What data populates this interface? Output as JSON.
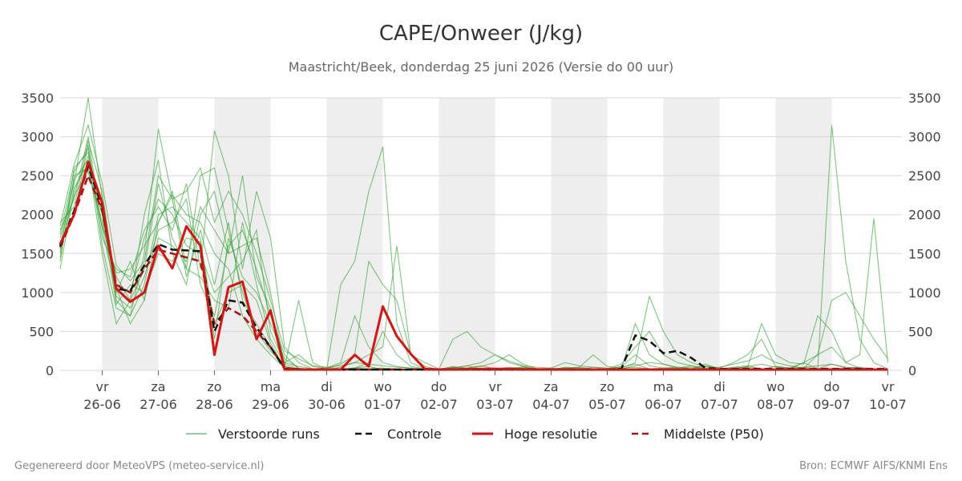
{
  "chart_data": {
    "type": "line",
    "title": "CAPE/Onweer (J/kg)",
    "subtitle": "Maastricht/Beek, donderdag 25 juni 2026 (Versie do 00 uur)",
    "ylim": [
      0,
      3500
    ],
    "yticks": [
      0,
      500,
      1000,
      1500,
      2000,
      2500,
      3000,
      3500
    ],
    "xlim": [
      -0.75,
      14.25
    ],
    "grid": true,
    "legend_position": "bottom",
    "day_ticks": [
      {
        "weekday": "vr",
        "date": "26-06"
      },
      {
        "weekday": "za",
        "date": "27-06"
      },
      {
        "weekday": "zo",
        "date": "28-06"
      },
      {
        "weekday": "ma",
        "date": "29-06"
      },
      {
        "weekday": "di",
        "date": "30-06"
      },
      {
        "weekday": "wo",
        "date": "01-07"
      },
      {
        "weekday": "do",
        "date": "02-07"
      },
      {
        "weekday": "vr",
        "date": "03-07"
      },
      {
        "weekday": "za",
        "date": "04-07"
      },
      {
        "weekday": "zo",
        "date": "05-07"
      },
      {
        "weekday": "ma",
        "date": "06-07"
      },
      {
        "weekday": "di",
        "date": "07-07"
      },
      {
        "weekday": "wo",
        "date": "08-07"
      },
      {
        "weekday": "do",
        "date": "09-07"
      },
      {
        "weekday": "vr",
        "date": "10-07"
      }
    ],
    "shaded_days": [
      0,
      2,
      4,
      6,
      8,
      10,
      12
    ],
    "series": [
      {
        "name": "Controle",
        "style": "dashed",
        "color": "#111111",
        "x": [
          -0.75,
          -0.5,
          -0.25,
          0,
          0.25,
          0.5,
          0.75,
          1,
          1.25,
          1.5,
          1.75,
          2,
          2.25,
          2.5,
          2.75,
          3,
          3.25,
          3.5,
          3.75,
          4,
          4.25,
          4.5,
          4.75,
          5,
          5.5,
          6,
          7,
          8,
          9,
          9.25,
          9.5,
          9.75,
          10,
          10.25,
          10.5,
          10.75,
          11,
          11.5,
          12,
          13,
          14
        ],
        "y": [
          1600,
          2050,
          2620,
          2100,
          1050,
          1020,
          1350,
          1620,
          1550,
          1540,
          1530,
          500,
          900,
          870,
          550,
          300,
          20,
          15,
          10,
          10,
          10,
          10,
          10,
          10,
          10,
          10,
          10,
          10,
          10,
          20,
          450,
          380,
          220,
          250,
          160,
          30,
          20,
          20,
          20,
          20,
          20
        ]
      },
      {
        "name": "Hoge resolutie",
        "style": "solid",
        "color": "#dd1111",
        "x": [
          -0.75,
          -0.5,
          -0.25,
          0,
          0.25,
          0.5,
          0.75,
          1,
          1.25,
          1.5,
          1.75,
          2,
          2.25,
          2.5,
          2.75,
          3,
          3.25,
          3.5,
          3.75,
          4,
          4.25,
          4.5,
          4.75,
          5,
          5.25,
          5.5,
          5.75,
          6,
          7,
          8,
          9,
          10,
          11,
          12,
          13,
          14
        ],
        "y": [
          1620,
          2000,
          2680,
          2150,
          1050,
          880,
          1000,
          1600,
          1310,
          1850,
          1600,
          200,
          1070,
          1140,
          400,
          770,
          10,
          10,
          10,
          10,
          10,
          200,
          50,
          820,
          440,
          210,
          20,
          10,
          20,
          10,
          10,
          10,
          10,
          10,
          10,
          10
        ]
      },
      {
        "name": "Middelste (P50)",
        "style": "dashed",
        "color": "#aa1111",
        "x": [
          -0.75,
          -0.5,
          -0.25,
          0,
          0.25,
          0.5,
          0.75,
          1,
          1.25,
          1.5,
          1.75,
          2,
          2.25,
          2.5,
          2.75,
          3,
          3.25,
          3.5,
          4,
          5,
          6,
          7,
          8,
          9,
          10,
          11,
          12,
          13,
          14
        ],
        "y": [
          1580,
          2000,
          2500,
          2050,
          1100,
          1000,
          1300,
          1550,
          1500,
          1450,
          1400,
          600,
          800,
          700,
          500,
          300,
          30,
          10,
          10,
          10,
          10,
          10,
          10,
          10,
          10,
          10,
          10,
          10,
          10
        ]
      }
    ],
    "ensemble": {
      "name": "Verstoorde runs",
      "color": "#2aa02a",
      "x": [
        -0.75,
        -0.5,
        -0.25,
        0,
        0.25,
        0.5,
        0.75,
        1,
        1.25,
        1.5,
        1.75,
        2,
        2.25,
        2.5,
        2.75,
        3,
        3.25,
        3.5,
        3.75,
        4,
        4.25,
        4.5,
        4.75,
        5,
        5.25,
        5.5,
        5.75,
        6,
        6.25,
        6.5,
        6.75,
        7,
        7.25,
        7.5,
        7.75,
        8,
        8.25,
        8.5,
        8.75,
        9,
        9.25,
        9.5,
        9.75,
        10,
        10.25,
        10.5,
        10.75,
        11,
        11.25,
        11.5,
        11.75,
        12,
        12.25,
        12.5,
        12.75,
        13,
        13.25,
        13.5,
        13.75,
        14
      ],
      "members": [
        [
          1700,
          2400,
          3500,
          2200,
          900,
          700,
          1500,
          3100,
          2200,
          1200,
          1800,
          1100,
          1900,
          900,
          600,
          300,
          50,
          20,
          10,
          40,
          20,
          30,
          15,
          20,
          10,
          10,
          10,
          10,
          50,
          20,
          10,
          10,
          30,
          20,
          10,
          10,
          30,
          20,
          10,
          10,
          20,
          600,
          200,
          80,
          30,
          60,
          20,
          10,
          30,
          20,
          10,
          50,
          30,
          20,
          10,
          3150,
          1400,
          400,
          100,
          20
        ],
        [
          1800,
          2200,
          3000,
          1800,
          1000,
          1400,
          900,
          1900,
          2300,
          1300,
          2500,
          2600,
          1800,
          1000,
          500,
          250,
          40,
          900,
          100,
          10,
          1100,
          1400,
          2300,
          2870,
          600,
          100,
          20,
          10,
          40,
          30,
          60,
          20,
          40,
          20,
          10,
          10,
          30,
          20,
          10,
          20,
          50,
          200,
          60,
          30,
          20,
          20,
          80,
          20,
          40,
          60,
          20,
          10,
          20,
          40,
          60,
          80,
          30,
          20,
          10,
          10
        ],
        [
          1500,
          2600,
          2800,
          2000,
          1200,
          900,
          2000,
          2700,
          1500,
          1100,
          2000,
          2300,
          1500,
          2500,
          1200,
          800,
          100,
          200,
          50,
          20,
          80,
          200,
          1400,
          1100,
          900,
          200,
          100,
          20,
          400,
          500,
          300,
          200,
          100,
          50,
          20,
          30,
          20,
          40,
          200,
          50,
          30,
          100,
          950,
          500,
          200,
          100,
          50,
          30,
          100,
          200,
          400,
          50,
          30,
          100,
          20,
          80,
          40,
          30,
          20,
          10
        ],
        [
          1650,
          2000,
          2900,
          1700,
          1300,
          1200,
          1800,
          2100,
          1800,
          2400,
          1300,
          3080,
          2500,
          1300,
          2300,
          1700,
          300,
          100,
          20,
          10,
          40,
          100,
          200,
          300,
          1600,
          200,
          50,
          10,
          30,
          60,
          20,
          10,
          20,
          40,
          20,
          10,
          40,
          30,
          20,
          20,
          40,
          80,
          20,
          30,
          40,
          20,
          20,
          20,
          30,
          40,
          600,
          200,
          100,
          80,
          700,
          500,
          100,
          30,
          20,
          20
        ],
        [
          1400,
          2500,
          2600,
          1900,
          1100,
          1000,
          1700,
          2200,
          2000,
          1600,
          1500,
          1000,
          1200,
          1400,
          1800,
          500,
          100,
          50,
          20,
          10,
          20,
          30,
          50,
          10,
          20,
          10,
          10,
          10,
          20,
          10,
          10,
          10,
          10,
          10,
          20,
          10,
          10,
          10,
          10,
          10,
          10,
          10,
          20,
          10,
          10,
          10,
          10,
          10,
          20,
          10,
          10,
          10,
          20,
          10,
          10,
          10,
          10,
          10,
          10,
          10
        ],
        [
          1300,
          2300,
          2750,
          2100,
          950,
          800,
          1200,
          1800,
          1900,
          2200,
          1100,
          700,
          1600,
          1800,
          1300,
          700,
          200,
          20,
          10,
          10,
          10,
          20,
          10,
          10,
          10,
          10,
          10,
          10,
          10,
          10,
          10,
          10,
          10,
          10,
          10,
          10,
          10,
          10,
          10,
          10,
          10,
          10,
          10,
          10,
          10,
          10,
          10,
          10,
          10,
          10,
          10,
          10,
          10,
          10,
          10,
          10,
          10,
          10,
          10,
          10
        ],
        [
          1750,
          2550,
          2850,
          1600,
          800,
          700,
          1100,
          2000,
          2100,
          1900,
          1700,
          400,
          1700,
          1200,
          1000,
          600,
          150,
          30,
          10,
          10,
          10,
          30,
          100,
          500,
          200,
          50,
          20,
          10,
          20,
          30,
          50,
          100,
          200,
          80,
          20,
          10,
          20,
          10,
          40,
          30,
          20,
          60,
          100,
          80,
          40,
          20,
          60,
          30,
          20,
          50,
          80,
          40,
          20,
          100,
          200,
          300,
          100,
          200,
          1950,
          100
        ],
        [
          1900,
          2100,
          2950,
          2300,
          1050,
          600,
          900,
          1700,
          1600,
          1400,
          2100,
          1800,
          1500,
          1600,
          1700,
          1000,
          50,
          10,
          10,
          10,
          10,
          10,
          10,
          20,
          10,
          10,
          10,
          10,
          10,
          10,
          10,
          10,
          10,
          10,
          10,
          10,
          10,
          10,
          10,
          10,
          10,
          10,
          10,
          10,
          10,
          10,
          10,
          10,
          10,
          10,
          10,
          10,
          10,
          10,
          10,
          10,
          10,
          10,
          10,
          10
        ],
        [
          1600,
          2450,
          2700,
          1500,
          600,
          900,
          1300,
          2400,
          1700,
          1300,
          1200,
          900,
          800,
          1900,
          1100,
          400,
          80,
          20,
          20,
          30,
          100,
          700,
          300,
          100,
          50,
          30,
          10,
          20,
          30,
          60,
          100,
          200,
          120,
          60,
          40,
          30,
          100,
          60,
          40,
          20,
          80,
          300,
          500,
          200,
          100,
          60,
          30,
          40,
          80,
          120,
          200,
          100,
          60,
          30,
          200,
          900,
          1000,
          700,
          400,
          150
        ],
        [
          1450,
          2350,
          2650,
          2000,
          850,
          1100,
          1000,
          1500,
          1400,
          1700,
          1650,
          600,
          1000,
          1100,
          900,
          350,
          40,
          10,
          10,
          10,
          10,
          10,
          10,
          10,
          10,
          10,
          10,
          10,
          10,
          10,
          10,
          10,
          10,
          10,
          10,
          10,
          10,
          10,
          10,
          10,
          10,
          10,
          10,
          10,
          10,
          10,
          10,
          10,
          10,
          10,
          10,
          10,
          10,
          10,
          10,
          10,
          10,
          10,
          10,
          10
        ],
        [
          1550,
          2250,
          2550,
          1850,
          1250,
          1300,
          1600,
          1900,
          2250,
          2000,
          1900,
          1500,
          1300,
          700,
          400,
          200,
          30,
          20,
          10,
          10,
          10,
          10,
          20,
          30,
          20,
          10,
          10,
          10,
          10,
          20,
          10,
          10,
          10,
          20,
          10,
          10,
          10,
          10,
          10,
          10,
          10,
          20,
          10,
          10,
          10,
          10,
          10,
          10,
          10,
          10,
          10,
          10,
          10,
          10,
          10,
          10,
          10,
          10,
          10,
          10
        ],
        [
          1850,
          2650,
          3150,
          2400,
          1350,
          1150,
          1400,
          2500,
          2200,
          2300,
          2600,
          1900,
          2300,
          2000,
          1500,
          900,
          250,
          150,
          60,
          40,
          60,
          100,
          80,
          60,
          40,
          30,
          20,
          20,
          40,
          30,
          20,
          20,
          30,
          40,
          20,
          20,
          30,
          40,
          20,
          20,
          30,
          40,
          20,
          20,
          30,
          40,
          20,
          20,
          30,
          40,
          20,
          20,
          30,
          40,
          20,
          20,
          30,
          40,
          20,
          20
        ]
      ]
    }
  },
  "legend": [
    {
      "label": "Verstoorde runs",
      "kind": "thin",
      "color": "#2aa02a"
    },
    {
      "label": "Controle",
      "kind": "dashed",
      "color": "#111111"
    },
    {
      "label": "Hoge resolutie",
      "kind": "solid",
      "color": "#dd1111"
    },
    {
      "label": "Middelste (P50)",
      "kind": "dashed",
      "color": "#aa1111"
    }
  ],
  "footer": {
    "left": "Gegenereerd door MeteoVPS (meteo-service.nl)",
    "right": "Bron: ECMWF AIFS/KNMI Ens"
  }
}
